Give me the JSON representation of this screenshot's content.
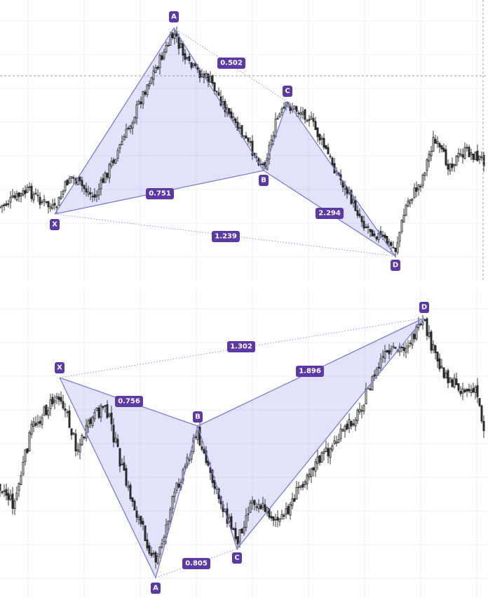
{
  "chart_data": [
    {
      "type": "candlestick",
      "pattern": "harmonic XABCD (bearish-to-bullish, top panel)",
      "points": {
        "X": {
          "label": "X"
        },
        "A": {
          "label": "A"
        },
        "B": {
          "label": "B"
        },
        "C": {
          "label": "C"
        },
        "D": {
          "label": "D"
        }
      },
      "ratios": {
        "XB": "0.751",
        "AC": "0.502",
        "BD": "2.294",
        "XD": "1.239"
      },
      "colors": {
        "pattern_fill": "#7c80e8",
        "badge": "#5b3aa8",
        "candle": "#2b2b2b"
      }
    },
    {
      "type": "candlestick",
      "pattern": "harmonic XABCD (bottom panel)",
      "points": {
        "X": {
          "label": "X"
        },
        "A": {
          "label": "A"
        },
        "B": {
          "label": "B"
        },
        "C": {
          "label": "C"
        },
        "D": {
          "label": "D"
        }
      },
      "ratios": {
        "XB": "0.756",
        "AC": "0.805",
        "BD": "1.896",
        "XD": "1.302"
      },
      "colors": {
        "pattern_fill": "#7c80e8",
        "badge": "#5b3aa8",
        "candle": "#2b2b2b"
      }
    }
  ]
}
